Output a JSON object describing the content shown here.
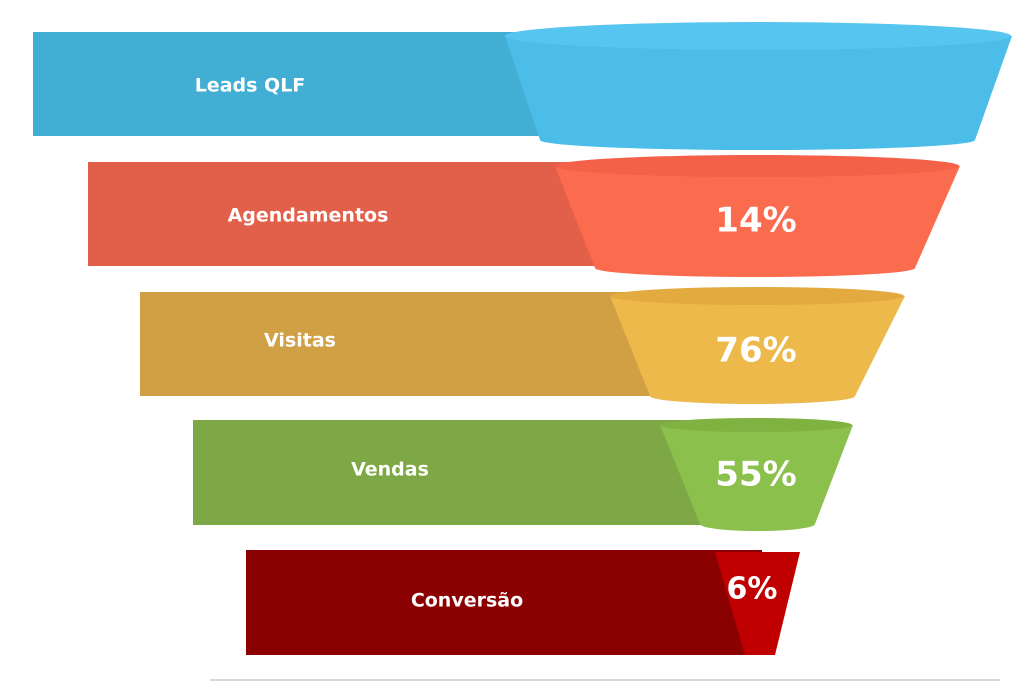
{
  "funnel": {
    "stages": [
      {
        "label": "Leads QLF"
      },
      {
        "label": "Agendamentos",
        "rate": "14%"
      },
      {
        "label": "Visitas",
        "rate": "76%"
      },
      {
        "label": "Vendas",
        "rate": "55%"
      },
      {
        "label": "Conversão",
        "rate": "6%"
      }
    ]
  }
}
